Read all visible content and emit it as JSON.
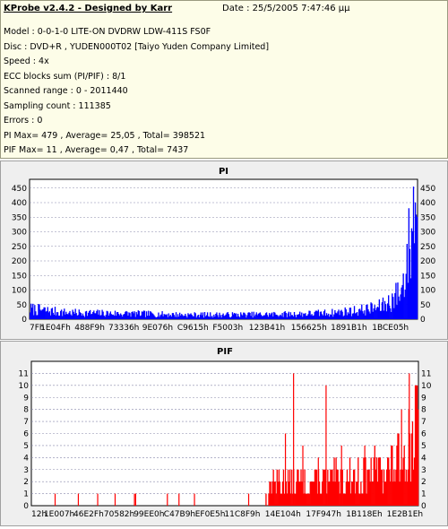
{
  "header": {
    "title": "KProbe v2.4.2 - Designed by Karr",
    "date": "Date : 25/5/2005 7:47:46 μμ"
  },
  "info_lines": [
    "Model : 0-0-1-0 LITE-ON DVDRW LDW-411S   FS0F",
    "Disc : DVD+R , YUDEN000T02 [Taiyo Yuden Company Limited]",
    "Speed : 4x",
    "ECC blocks sum (PI/PIF) : 8/1",
    "Scanned range : 0 - 2011440",
    "Sampling count : 111385",
    "Errors : 0",
    "PI Max= 479 , Average= 25,05 , Total= 398521",
    "PIF Max= 11 , Average= 0,47 , Total= 7437"
  ],
  "chart_data": [
    {
      "type": "bar",
      "title": "PI",
      "color": "#0000ff",
      "ylim": [
        0,
        480
      ],
      "y_ticks": [
        0,
        50,
        100,
        150,
        200,
        250,
        300,
        350,
        400,
        450
      ],
      "x_ticks": [
        "7Fh",
        "1E04Fh",
        "488F9h",
        "73336h",
        "9E076h",
        "C9615h",
        "F5003h",
        "123B41h",
        "156625h",
        "1891B1h",
        "1BCE05h"
      ],
      "x_tick_fraction": [
        0.0,
        0.067,
        0.155,
        0.243,
        0.33,
        0.421,
        0.511,
        0.612,
        0.72,
        0.823,
        0.93
      ],
      "profile": [
        {
          "x": 0.0,
          "y": 35
        },
        {
          "x": 0.05,
          "y": 28
        },
        {
          "x": 0.1,
          "y": 22
        },
        {
          "x": 0.2,
          "y": 20
        },
        {
          "x": 0.3,
          "y": 18
        },
        {
          "x": 0.4,
          "y": 15
        },
        {
          "x": 0.5,
          "y": 15
        },
        {
          "x": 0.6,
          "y": 16
        },
        {
          "x": 0.7,
          "y": 18
        },
        {
          "x": 0.78,
          "y": 22
        },
        {
          "x": 0.85,
          "y": 30
        },
        {
          "x": 0.9,
          "y": 40
        },
        {
          "x": 0.93,
          "y": 60
        },
        {
          "x": 0.96,
          "y": 100
        },
        {
          "x": 0.98,
          "y": 250
        },
        {
          "x": 1.0,
          "y": 460
        }
      ],
      "max": 479
    },
    {
      "type": "bar",
      "title": "PIF",
      "color": "#ff0000",
      "ylim": [
        0,
        12
      ],
      "y_ticks": [
        0,
        1,
        2,
        3,
        4,
        5,
        6,
        7,
        8,
        9,
        10,
        11
      ],
      "x_ticks": [
        "12h",
        "1E007h",
        "46E2Fh",
        "70582h",
        "99EE0h",
        "C47B9h",
        "EF0E5h",
        "11C8F9h",
        "14E104h",
        "17F947h",
        "1B118Eh",
        "1E2B1Eh"
      ],
      "x_tick_fraction": [
        0.0,
        0.072,
        0.148,
        0.227,
        0.304,
        0.383,
        0.462,
        0.545,
        0.65,
        0.755,
        0.86,
        0.965
      ],
      "profile": [
        {
          "x": 0.0,
          "y": 0
        },
        {
          "x": 0.6,
          "y": 0
        },
        {
          "x": 0.62,
          "y": 2
        },
        {
          "x": 0.75,
          "y": 2
        },
        {
          "x": 0.85,
          "y": 2.5
        },
        {
          "x": 0.95,
          "y": 3.5
        },
        {
          "x": 1.0,
          "y": 7
        }
      ],
      "spikes": [
        {
          "x": 0.06,
          "y": 1
        },
        {
          "x": 0.12,
          "y": 1
        },
        {
          "x": 0.17,
          "y": 1
        },
        {
          "x": 0.215,
          "y": 1
        },
        {
          "x": 0.265,
          "y": 1
        },
        {
          "x": 0.268,
          "y": 1
        },
        {
          "x": 0.35,
          "y": 1
        },
        {
          "x": 0.38,
          "y": 1
        },
        {
          "x": 0.42,
          "y": 1
        },
        {
          "x": 0.56,
          "y": 1
        },
        {
          "x": 0.655,
          "y": 6
        },
        {
          "x": 0.676,
          "y": 11
        },
        {
          "x": 0.7,
          "y": 5
        },
        {
          "x": 0.74,
          "y": 4
        },
        {
          "x": 0.76,
          "y": 10
        },
        {
          "x": 0.8,
          "y": 5
        },
        {
          "x": 0.86,
          "y": 5
        },
        {
          "x": 0.9,
          "y": 4
        },
        {
          "x": 0.955,
          "y": 8
        },
        {
          "x": 0.975,
          "y": 11
        }
      ],
      "max": 11
    }
  ]
}
